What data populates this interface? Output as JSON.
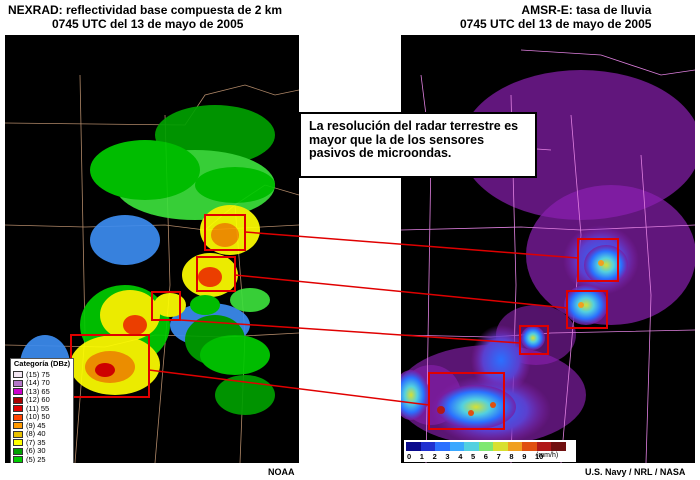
{
  "left": {
    "title_line1": "NEXRAD: reflectividad base compuesta de 2 km",
    "title_line2": "0745 UTC del 13 de mayo de 2005",
    "credit": "NOAA",
    "legend": {
      "title": "Categoría (DBz)",
      "items": [
        {
          "label": "(15) 75",
          "color": "#f2e6f2"
        },
        {
          "label": "(14) 70",
          "color": "#b478c8"
        },
        {
          "label": "(13) 65",
          "color": "#cc00cc"
        },
        {
          "label": "(12) 60",
          "color": "#a80000"
        },
        {
          "label": "(11) 55",
          "color": "#e00000"
        },
        {
          "label": "(10) 50",
          "color": "#ff4400"
        },
        {
          "label": "(9) 45",
          "color": "#ff9a00"
        },
        {
          "label": "(8) 40",
          "color": "#e8c000"
        },
        {
          "label": "(7) 35",
          "color": "#ffff00"
        },
        {
          "label": "(6) 30",
          "color": "#00a000"
        },
        {
          "label": "(5) 25",
          "color": "#00cc00"
        },
        {
          "label": "(4) 20",
          "color": "#3ce03c"
        },
        {
          "label": "(3) 15",
          "color": "#0000e0"
        },
        {
          "label": "(2) 10",
          "color": "#3c8cf0"
        },
        {
          "label": "(1) 5",
          "color": "#00e0e0"
        }
      ]
    }
  },
  "right": {
    "title_line1": "AMSR-E: tasa de lluvia",
    "title_line2": "0745 UTC del 13 de mayo de 2005",
    "credit": "U.S. Navy / NRL / NASA",
    "colorbar": {
      "ticks": [
        "0",
        "1",
        "2",
        "3",
        "4",
        "5",
        "6",
        "7",
        "8",
        "9",
        "10"
      ],
      "unit": "(mm/h)",
      "colors": [
        "#0a0a8c",
        "#2030d0",
        "#2a70ff",
        "#3aa8ff",
        "#52d0e0",
        "#7ee870",
        "#d8e030",
        "#f0a020",
        "#e05010",
        "#b01818",
        "#701010"
      ]
    }
  },
  "callout": {
    "text": "La resolución del radar terrestre es mayor que la de los sensores pasivos de microondas."
  }
}
